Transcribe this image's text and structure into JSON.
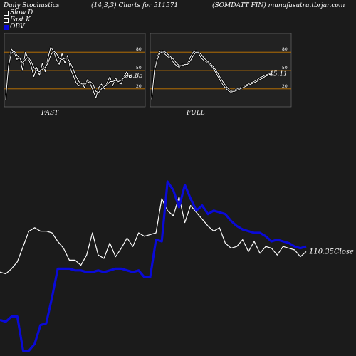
{
  "header": {
    "left": "Daily Stochastics",
    "middle": "(14,3,3) Charts for 511571",
    "right": "(SOMDATT FIN) munafasutra.tbrjar.com"
  },
  "legend": [
    {
      "label": "Slow  D",
      "swatch": "hollow"
    },
    {
      "label": "Fast K",
      "swatch": "hollow"
    },
    {
      "label": "OBV",
      "swatch": "blue"
    }
  ],
  "colors": {
    "background": "#1b1b1b",
    "panel": "#222222",
    "level_line": "#c87800",
    "price_line": "#ffffff",
    "obv_line": "#0a0ad8"
  },
  "chart_data": [
    {
      "type": "line",
      "name": "fast-stochastics-panel",
      "label": "FAST",
      "ylim": [
        0,
        100
      ],
      "levels": [
        20,
        50,
        80
      ],
      "tick_labels": [
        "80",
        "50",
        "20"
      ],
      "last_value_label": "38.85",
      "series": [
        {
          "role": "k",
          "values": [
            2,
            62,
            85,
            80,
            68,
            72,
            50,
            80,
            70,
            58,
            40,
            55,
            42,
            62,
            48,
            70,
            88,
            82,
            68,
            60,
            78,
            62,
            75,
            52,
            42,
            30,
            25,
            30,
            22,
            35,
            28,
            18,
            5,
            22,
            28,
            20,
            30,
            40,
            25,
            38,
            30,
            28,
            40,
            48,
            38,
            42
          ]
        },
        {
          "role": "d",
          "values": [
            4,
            58,
            78,
            82,
            75,
            70,
            62,
            68,
            72,
            65,
            55,
            50,
            48,
            52,
            55,
            62,
            75,
            82,
            78,
            70,
            68,
            70,
            70,
            62,
            52,
            40,
            32,
            28,
            28,
            30,
            32,
            28,
            16,
            14,
            20,
            24,
            26,
            32,
            32,
            34,
            32,
            34,
            38,
            42,
            42,
            40
          ]
        }
      ]
    },
    {
      "type": "line",
      "name": "full-stochastics-panel",
      "label": "FULL",
      "ylim": [
        0,
        100
      ],
      "levels": [
        20,
        50,
        80
      ],
      "tick_labels": [
        "80",
        "50",
        "20"
      ],
      "last_value_label": "45.11",
      "series": [
        {
          "role": "k",
          "values": [
            4,
            55,
            72,
            82,
            80,
            76,
            72,
            70,
            62,
            58,
            55,
            60,
            58,
            62,
            72,
            80,
            82,
            78,
            70,
            66,
            64,
            60,
            55,
            48,
            40,
            32,
            25,
            20,
            16,
            14,
            18,
            20,
            22,
            22,
            26,
            28,
            30,
            32,
            34,
            38,
            40,
            42,
            44,
            45
          ]
        },
        {
          "role": "d",
          "values": [
            3,
            50,
            68,
            78,
            82,
            80,
            76,
            72,
            68,
            62,
            58,
            58,
            60,
            60,
            66,
            74,
            80,
            80,
            76,
            70,
            66,
            62,
            58,
            52,
            45,
            37,
            30,
            24,
            19,
            16,
            16,
            18,
            20,
            22,
            24,
            26,
            28,
            30,
            32,
            35,
            37,
            40,
            42,
            44
          ]
        }
      ]
    },
    {
      "type": "line",
      "name": "price-obv-panel",
      "ylim": [
        0,
        100
      ],
      "close_label": "110.35",
      "close_suffix": "Close",
      "series": [
        {
          "name": "Close",
          "values": [
            47,
            46,
            49,
            53,
            62,
            71,
            73,
            71,
            71,
            70,
            65,
            61,
            54,
            54,
            51,
            57,
            70,
            57,
            55,
            64,
            56,
            61,
            67,
            62,
            70,
            68,
            69,
            70,
            90,
            83,
            80,
            91,
            76,
            86,
            82,
            78,
            74,
            71,
            73,
            64,
            61,
            62,
            66,
            59,
            65,
            58,
            62,
            61,
            57,
            62,
            61,
            60,
            56,
            59
          ]
        },
        {
          "name": "OBV",
          "values": [
            19,
            18,
            21,
            21,
            1,
            1,
            5,
            16,
            17,
            32,
            49,
            49,
            49,
            48,
            48,
            47,
            47,
            48,
            47,
            48,
            49,
            49,
            48,
            47,
            48,
            44,
            44,
            66,
            65,
            100,
            95,
            85,
            98,
            90,
            83,
            86,
            81,
            83,
            82,
            81,
            77,
            74,
            72,
            71,
            70,
            70,
            68,
            65,
            66,
            65,
            64,
            62,
            61,
            62
          ]
        }
      ]
    }
  ]
}
